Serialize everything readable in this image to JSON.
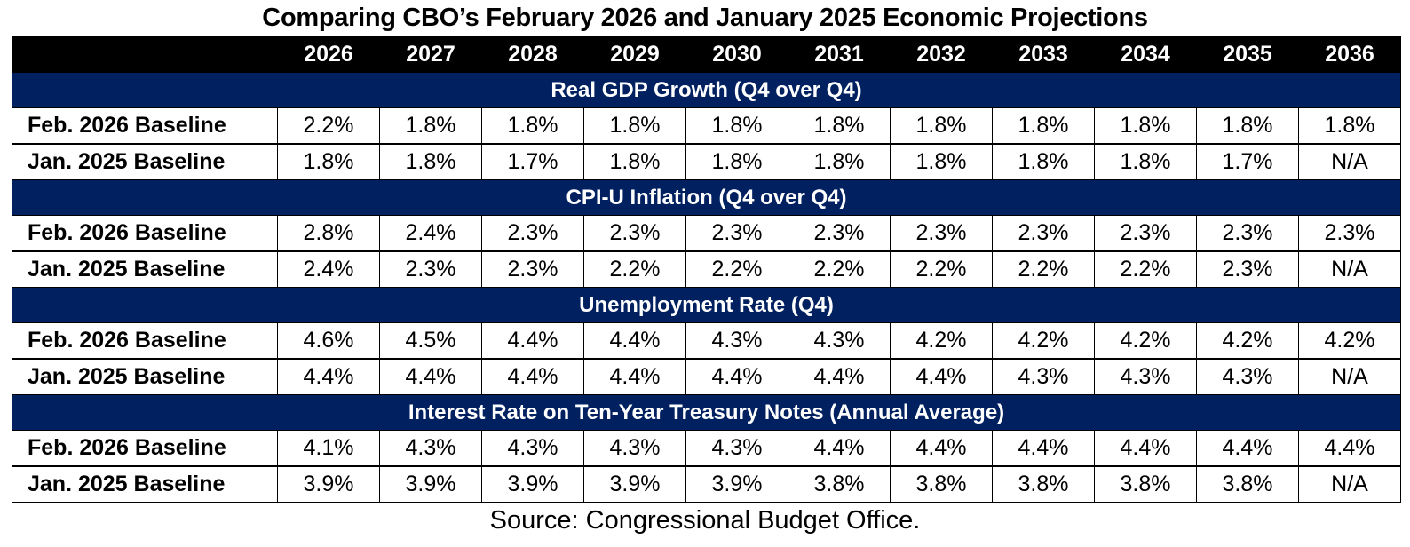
{
  "title": "Comparing CBO’s February 2026 and January 2025 Economic Projections",
  "source": "Source: Congressional Budget Office.",
  "colors": {
    "header_bg": "#000000",
    "band_bg": "#002060",
    "band_text": "#ffffff"
  },
  "chart_data": {
    "type": "table",
    "title": "Comparing CBO’s February 2026 and January 2025 Economic Projections",
    "columns": [
      "2026",
      "2027",
      "2028",
      "2029",
      "2030",
      "2031",
      "2032",
      "2033",
      "2034",
      "2035",
      "2036"
    ],
    "sections": [
      {
        "heading": "Real GDP Growth (Q4 over Q4)",
        "rows": [
          {
            "label": "Feb. 2026 Baseline",
            "values": [
              "2.2%",
              "1.8%",
              "1.8%",
              "1.8%",
              "1.8%",
              "1.8%",
              "1.8%",
              "1.8%",
              "1.8%",
              "1.8%",
              "1.8%"
            ]
          },
          {
            "label": "Jan. 2025 Baseline",
            "values": [
              "1.8%",
              "1.8%",
              "1.7%",
              "1.8%",
              "1.8%",
              "1.8%",
              "1.8%",
              "1.8%",
              "1.8%",
              "1.7%",
              "N/A"
            ]
          }
        ]
      },
      {
        "heading": "CPI-U Inflation (Q4 over Q4)",
        "rows": [
          {
            "label": "Feb. 2026 Baseline",
            "values": [
              "2.8%",
              "2.4%",
              "2.3%",
              "2.3%",
              "2.3%",
              "2.3%",
              "2.3%",
              "2.3%",
              "2.3%",
              "2.3%",
              "2.3%"
            ]
          },
          {
            "label": "Jan. 2025 Baseline",
            "values": [
              "2.4%",
              "2.3%",
              "2.3%",
              "2.2%",
              "2.2%",
              "2.2%",
              "2.2%",
              "2.2%",
              "2.2%",
              "2.3%",
              "N/A"
            ]
          }
        ]
      },
      {
        "heading": "Unemployment Rate (Q4)",
        "rows": [
          {
            "label": "Feb. 2026 Baseline",
            "values": [
              "4.6%",
              "4.5%",
              "4.4%",
              "4.4%",
              "4.3%",
              "4.3%",
              "4.2%",
              "4.2%",
              "4.2%",
              "4.2%",
              "4.2%"
            ]
          },
          {
            "label": "Jan. 2025 Baseline",
            "values": [
              "4.4%",
              "4.4%",
              "4.4%",
              "4.4%",
              "4.4%",
              "4.4%",
              "4.4%",
              "4.3%",
              "4.3%",
              "4.3%",
              "N/A"
            ]
          }
        ]
      },
      {
        "heading": "Interest Rate on Ten-Year Treasury Notes (Annual Average)",
        "rows": [
          {
            "label": "Feb. 2026 Baseline",
            "values": [
              "4.1%",
              "4.3%",
              "4.3%",
              "4.3%",
              "4.3%",
              "4.4%",
              "4.4%",
              "4.4%",
              "4.4%",
              "4.4%",
              "4.4%"
            ]
          },
          {
            "label": "Jan. 2025 Baseline",
            "values": [
              "3.9%",
              "3.9%",
              "3.9%",
              "3.9%",
              "3.9%",
              "3.8%",
              "3.8%",
              "3.8%",
              "3.8%",
              "3.8%",
              "N/A"
            ]
          }
        ]
      }
    ]
  }
}
